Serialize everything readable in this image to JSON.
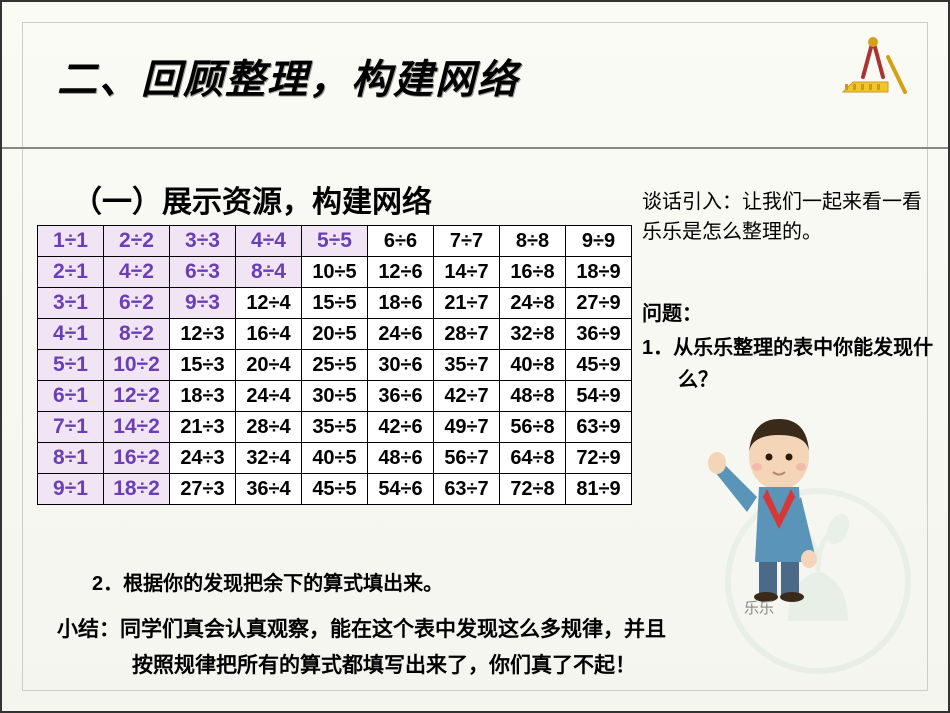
{
  "title": "二、回顾整理，构建网络",
  "subtitle": "（一）展示资源，构建网络",
  "dialogue": "谈话引入：让我们一起来看一看乐乐是怎么整理的。",
  "question_label": "问题：",
  "question1": "1．从乐乐整理的表中你能发现什么？",
  "question2": "2．根据你的发现把余下的算式填出来。",
  "summary_line1": "小结：同学们真会认真观察，能在这个表中发现这么多规律，并且",
  "summary_line2": "按照规律把所有的算式都填写出来了，你们真了不起！",
  "character_name": "乐乐",
  "table": {
    "rows": [
      [
        {
          "v": "1÷1",
          "c": "diag"
        },
        {
          "v": "2÷2",
          "c": "diag"
        },
        {
          "v": "3÷3",
          "c": "diag"
        },
        {
          "v": "4÷4",
          "c": "diag"
        },
        {
          "v": "5÷5",
          "c": "diag"
        },
        {
          "v": "6÷6"
        },
        {
          "v": "7÷7"
        },
        {
          "v": "8÷8"
        },
        {
          "v": "9÷9"
        }
      ],
      [
        {
          "v": "2÷1",
          "c": "purple"
        },
        {
          "v": "4÷2",
          "c": "purple"
        },
        {
          "v": "6÷3",
          "c": "purple"
        },
        {
          "v": "8÷4",
          "c": "purple"
        },
        {
          "v": "10÷5"
        },
        {
          "v": "12÷6"
        },
        {
          "v": "14÷7"
        },
        {
          "v": "16÷8"
        },
        {
          "v": "18÷9"
        }
      ],
      [
        {
          "v": "3÷1",
          "c": "purple"
        },
        {
          "v": "6÷2",
          "c": "purple"
        },
        {
          "v": "9÷3",
          "c": "purple"
        },
        {
          "v": "12÷4"
        },
        {
          "v": "15÷5"
        },
        {
          "v": "18÷6"
        },
        {
          "v": "21÷7"
        },
        {
          "v": "24÷8"
        },
        {
          "v": "27÷9"
        }
      ],
      [
        {
          "v": "4÷1",
          "c": "purple"
        },
        {
          "v": "8÷2",
          "c": "purple"
        },
        {
          "v": "12÷3"
        },
        {
          "v": "16÷4"
        },
        {
          "v": "20÷5"
        },
        {
          "v": "24÷6"
        },
        {
          "v": "28÷7"
        },
        {
          "v": "32÷8"
        },
        {
          "v": "36÷9"
        }
      ],
      [
        {
          "v": "5÷1",
          "c": "purple"
        },
        {
          "v": "10÷2",
          "c": "purple"
        },
        {
          "v": "15÷3"
        },
        {
          "v": "20÷4"
        },
        {
          "v": "25÷5"
        },
        {
          "v": "30÷6"
        },
        {
          "v": "35÷7"
        },
        {
          "v": "40÷8"
        },
        {
          "v": "45÷9"
        }
      ],
      [
        {
          "v": "6÷1",
          "c": "purple"
        },
        {
          "v": "12÷2",
          "c": "purple"
        },
        {
          "v": "18÷3"
        },
        {
          "v": "24÷4"
        },
        {
          "v": "30÷5"
        },
        {
          "v": "36÷6"
        },
        {
          "v": "42÷7"
        },
        {
          "v": "48÷8"
        },
        {
          "v": "54÷9"
        }
      ],
      [
        {
          "v": "7÷1",
          "c": "purple"
        },
        {
          "v": "14÷2",
          "c": "purple"
        },
        {
          "v": "21÷3"
        },
        {
          "v": "28÷4"
        },
        {
          "v": "35÷5"
        },
        {
          "v": "42÷6"
        },
        {
          "v": "49÷7"
        },
        {
          "v": "56÷8"
        },
        {
          "v": "63÷9"
        }
      ],
      [
        {
          "v": "8÷1",
          "c": "purple"
        },
        {
          "v": "16÷2",
          "c": "purple"
        },
        {
          "v": "24÷3"
        },
        {
          "v": "32÷4"
        },
        {
          "v": "40÷5"
        },
        {
          "v": "48÷6"
        },
        {
          "v": "56÷7"
        },
        {
          "v": "64÷8"
        },
        {
          "v": "72÷9"
        }
      ],
      [
        {
          "v": "9÷1",
          "c": "purple"
        },
        {
          "v": "18÷2",
          "c": "purple"
        },
        {
          "v": "27÷3"
        },
        {
          "v": "36÷4"
        },
        {
          "v": "45÷5"
        },
        {
          "v": "54÷6"
        },
        {
          "v": "63÷7"
        },
        {
          "v": "72÷8"
        },
        {
          "v": "81÷9"
        }
      ]
    ]
  },
  "colors": {
    "purple_text": "#6a3fb5",
    "purple_bg": "#f0e4f5",
    "page_bg": "#f8f8f2",
    "border": "#000000"
  }
}
